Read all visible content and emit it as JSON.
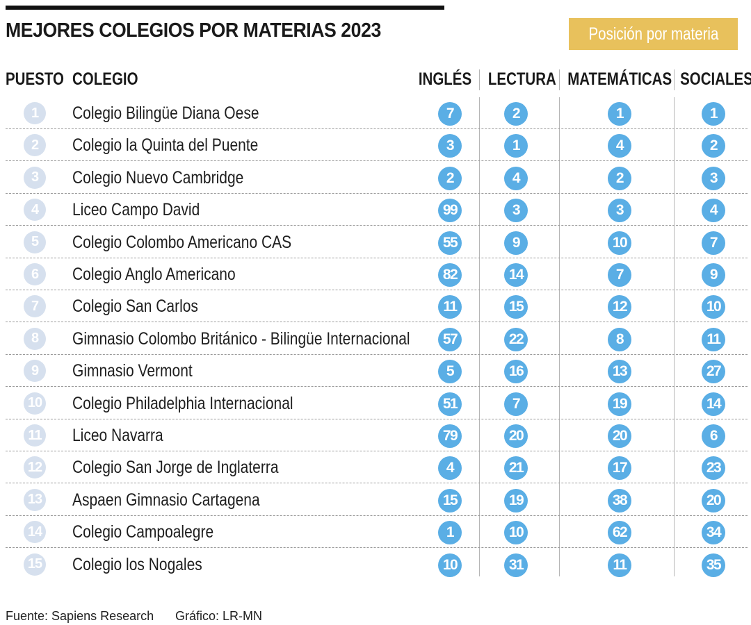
{
  "title": "MEJORES COLEGIOS POR MATERIAS 2023",
  "badge": "Posición por materia",
  "headers": {
    "rank": "PUESTO",
    "school": "COLEGIO",
    "ingles": "INGLÉS",
    "lectura": "LECTURA",
    "matematicas": "MATEMÁTICAS",
    "sociales": "SOCIALES"
  },
  "colors": {
    "accent": "#5aaee5",
    "rank_circle": "#d6e0ee",
    "badge": "#e8c15c"
  },
  "chart_data": {
    "type": "table",
    "title": "MEJORES COLEGIOS POR MATERIAS 2023",
    "columns": [
      "PUESTO",
      "COLEGIO",
      "INGLÉS",
      "LECTURA",
      "MATEMÁTICAS",
      "SOCIALES"
    ],
    "rows": [
      {
        "rank": "1",
        "school": "Colegio Bilingüe Diana Oese",
        "ingles": "7",
        "lectura": "2",
        "matematicas": "1",
        "sociales": "1"
      },
      {
        "rank": "2",
        "school": "Colegio la Quinta del Puente",
        "ingles": "3",
        "lectura": "1",
        "matematicas": "4",
        "sociales": "2"
      },
      {
        "rank": "3",
        "school": "Colegio Nuevo Cambridge",
        "ingles": "2",
        "lectura": "4",
        "matematicas": "2",
        "sociales": "3"
      },
      {
        "rank": "4",
        "school": "Liceo Campo David",
        "ingles": "99",
        "lectura": "3",
        "matematicas": "3",
        "sociales": "4"
      },
      {
        "rank": "5",
        "school": "Colegio Colombo Americano CAS",
        "ingles": "55",
        "lectura": "9",
        "matematicas": "10",
        "sociales": "7"
      },
      {
        "rank": "6",
        "school": "Colegio Anglo Americano",
        "ingles": "82",
        "lectura": "14",
        "matematicas": "7",
        "sociales": "9"
      },
      {
        "rank": "7",
        "school": "Colegio San Carlos",
        "ingles": "11",
        "lectura": "15",
        "matematicas": "12",
        "sociales": "10"
      },
      {
        "rank": "8",
        "school": "Gimnasio Colombo Británico - Bilingüe Internacional",
        "ingles": "57",
        "lectura": "22",
        "matematicas": "8",
        "sociales": "11"
      },
      {
        "rank": "9",
        "school": "Gimnasio Vermont",
        "ingles": "5",
        "lectura": "16",
        "matematicas": "13",
        "sociales": "27"
      },
      {
        "rank": "10",
        "school": "Colegio Philadelphia Internacional",
        "ingles": "51",
        "lectura": "7",
        "matematicas": "19",
        "sociales": "14"
      },
      {
        "rank": "11",
        "school": "Liceo Navarra",
        "ingles": "79",
        "lectura": "20",
        "matematicas": "20",
        "sociales": "6"
      },
      {
        "rank": "12",
        "school": "Colegio San Jorge de Inglaterra",
        "ingles": "4",
        "lectura": "21",
        "matematicas": "17",
        "sociales": "23"
      },
      {
        "rank": "13",
        "school": "Aspaen Gimnasio Cartagena",
        "ingles": "15",
        "lectura": "19",
        "matematicas": "38",
        "sociales": "20"
      },
      {
        "rank": "14",
        "school": "Colegio Campoalegre",
        "ingles": "1",
        "lectura": "10",
        "matematicas": "62",
        "sociales": "34"
      },
      {
        "rank": "15",
        "school": "Colegio los Nogales",
        "ingles": "10",
        "lectura": "31",
        "matematicas": "11",
        "sociales": "35"
      }
    ]
  },
  "footer": {
    "source": "Fuente: Sapiens Research",
    "credit": "Gráfico: LR-MN"
  }
}
